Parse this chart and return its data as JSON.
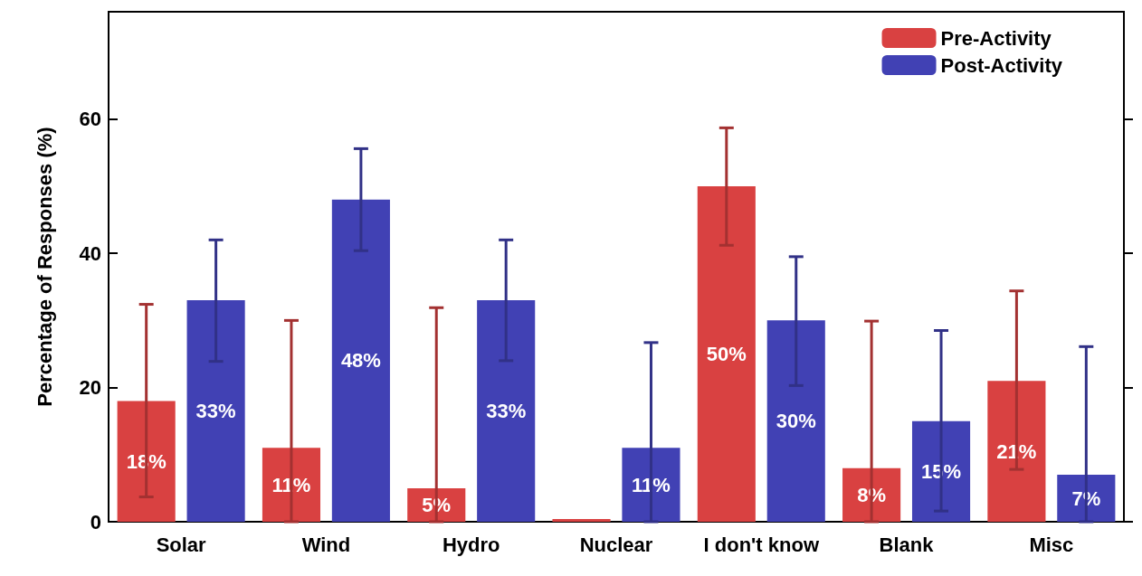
{
  "chart_data": {
    "type": "bar",
    "ylabel": "Percentage of Responses (%)",
    "categories": [
      "Solar",
      "Wind",
      "Hydro",
      "Nuclear",
      "I don't know",
      "Blank",
      "Misc"
    ],
    "series": [
      {
        "name": "Pre-Activity",
        "color": "#d94141",
        "values": [
          18,
          11,
          5,
          0,
          50,
          8,
          21
        ],
        "errors": [
          [
            3.7,
            32.4
          ],
          [
            0,
            30
          ],
          [
            0,
            31.9
          ],
          null,
          [
            41.2,
            58.7
          ],
          [
            0,
            29.9
          ],
          [
            7.8,
            34.4
          ]
        ],
        "value_labels": [
          "18%",
          "11%",
          "5%",
          null,
          "50%",
          "8%",
          "21%"
        ]
      },
      {
        "name": "Post-Activity",
        "color": "#4141b4",
        "values": [
          33,
          48,
          33,
          11,
          30,
          15,
          7
        ],
        "errors": [
          [
            23.9,
            42
          ],
          [
            40.4,
            55.6
          ],
          [
            24,
            42
          ],
          [
            0,
            26.7
          ],
          [
            20.3,
            39.5
          ],
          [
            1.6,
            28.5
          ],
          [
            0,
            26.1
          ]
        ],
        "value_labels": [
          "33%",
          "48%",
          "33%",
          "11%",
          "30%",
          "15%",
          "7%"
        ]
      }
    ],
    "ylim": [
      0,
      76
    ],
    "yticks": [
      0,
      20,
      40,
      60
    ],
    "grid": false,
    "legend": "top right"
  }
}
